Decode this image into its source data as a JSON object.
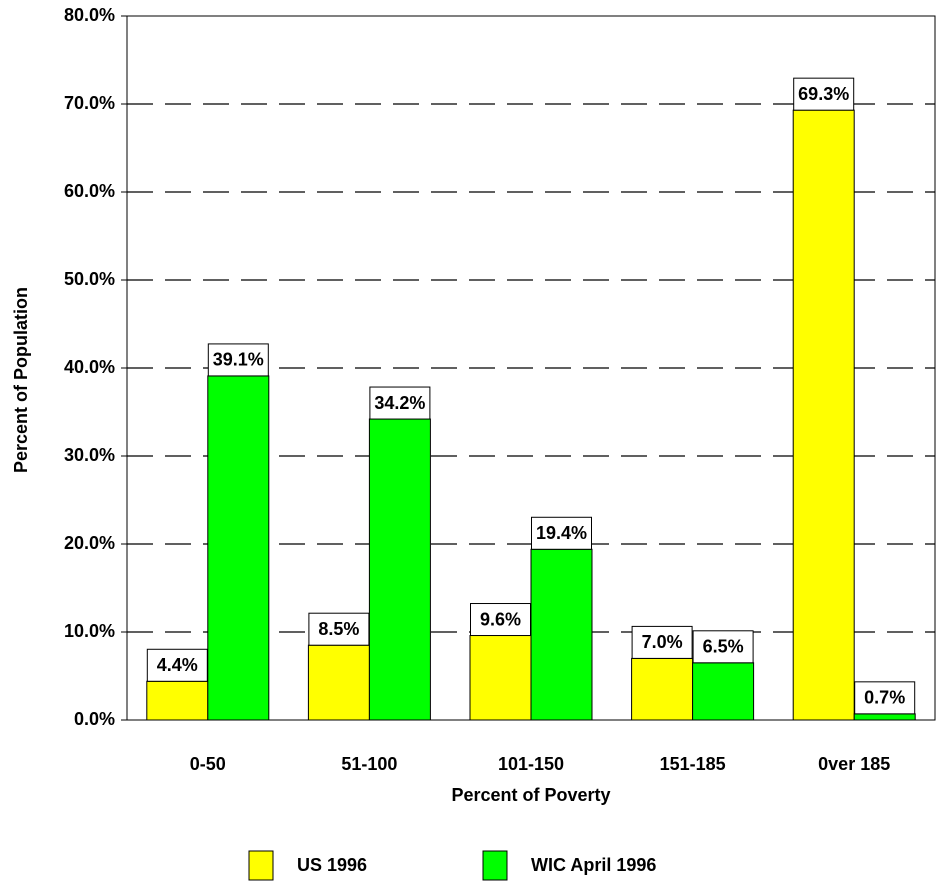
{
  "chart_data": {
    "type": "bar",
    "x_label": "Percent of Poverty",
    "y_label": "Percent of Population",
    "categories": [
      "0-50",
      "51-100",
      "101-150",
      "151-185",
      "0ver 185"
    ],
    "series": [
      {
        "name": "US 1996",
        "color": "#ffff00",
        "values": [
          4.4,
          8.5,
          9.6,
          7.0,
          69.3
        ],
        "value_labels": [
          "4.4%",
          "8.5%",
          "9.6%",
          "7.0%",
          "69.3%"
        ]
      },
      {
        "name": "WIC April 1996",
        "color": "#00ff00",
        "values": [
          39.1,
          34.2,
          19.4,
          6.5,
          0.7
        ],
        "value_labels": [
          "39.1%",
          "34.2%",
          "19.4%",
          "6.5%",
          "0.7%"
        ]
      }
    ],
    "ylim": [
      0,
      80
    ],
    "yticks": [
      {
        "value": 0,
        "label": "0.0%"
      },
      {
        "value": 10,
        "label": "10.0%"
      },
      {
        "value": 20,
        "label": "20.0%"
      },
      {
        "value": 30,
        "label": "30.0%"
      },
      {
        "value": 40,
        "label": "40.0%"
      },
      {
        "value": 50,
        "label": "50.0%"
      },
      {
        "value": 60,
        "label": "60.0%"
      },
      {
        "value": 70,
        "label": "70.0%"
      },
      {
        "value": 80,
        "label": "80.0%"
      }
    ],
    "grid": true,
    "legend": "bottom"
  }
}
